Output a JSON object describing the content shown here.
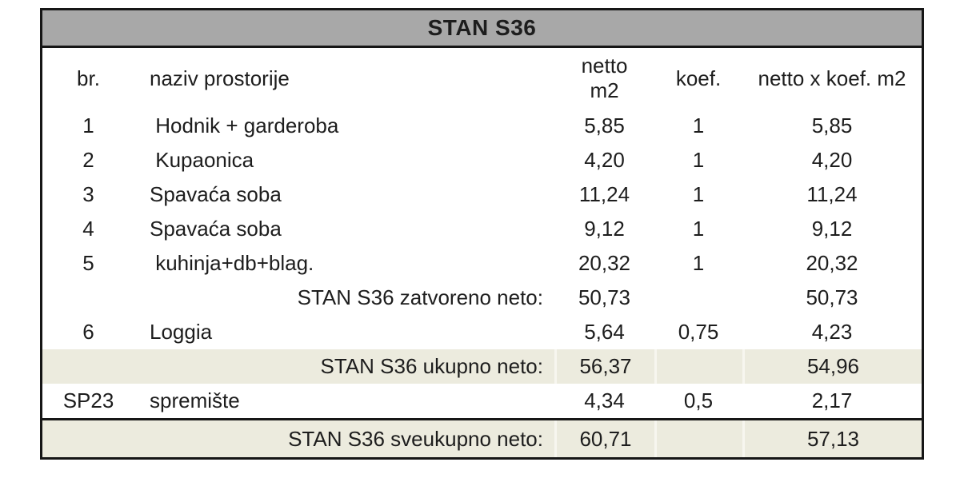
{
  "table": {
    "title": "STAN S36",
    "columns": {
      "br": "br.",
      "name": "naziv prostorije",
      "netto_line1": "netto",
      "netto_line2": "m2",
      "koef": "koef.",
      "result": "netto x koef. m2"
    },
    "rows": [
      {
        "type": "room",
        "br": "1",
        "name": " Hodnik + garderoba",
        "netto": "5,85",
        "koef": "1",
        "result": "5,85"
      },
      {
        "type": "room",
        "br": "2",
        "name": " Kupaonica",
        "netto": "4,20",
        "koef": "1",
        "result": "4,20"
      },
      {
        "type": "room",
        "br": "3",
        "name": "Spavaća soba",
        "netto": "11,24",
        "koef": "1",
        "result": "11,24"
      },
      {
        "type": "room",
        "br": "4",
        "name": "Spavaća soba",
        "netto": "9,12",
        "koef": "1",
        "result": "9,12"
      },
      {
        "type": "room",
        "br": "5",
        "name": " kuhinja+db+blag.",
        "netto": "20,32",
        "koef": "1",
        "result": "20,32"
      },
      {
        "type": "subtotal",
        "label": "STAN S36 zatvoreno neto:",
        "netto": "50,73",
        "koef": "",
        "result": "50,73"
      },
      {
        "type": "room",
        "br": "6",
        "name": "Loggia",
        "netto": "5,64",
        "koef": "0,75",
        "result": "4,23"
      },
      {
        "type": "total",
        "label": "STAN S36 ukupno neto:",
        "netto": "56,37",
        "koef": "",
        "result": "54,96"
      },
      {
        "type": "room",
        "br": "SP23",
        "name": "spremište",
        "netto": "4,34",
        "koef": "0,5",
        "result": "2,17"
      },
      {
        "type": "grandtotal",
        "label": "STAN S36 sveukupno neto:",
        "netto": "60,71",
        "koef": "",
        "result": "57,13"
      }
    ]
  },
  "colors": {
    "header_bg": "#a8a8a8",
    "highlight_bg": "#ecebde",
    "separator": "#f7f6ef",
    "border": "#161616",
    "text": "#1d1d1d",
    "page_bg": "#ffffff"
  }
}
